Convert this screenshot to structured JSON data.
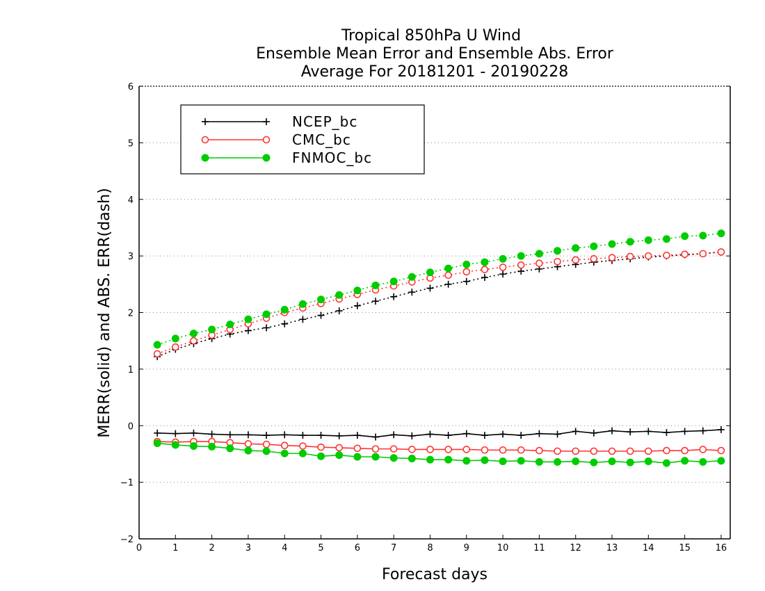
{
  "chart_data": {
    "type": "line",
    "title": [
      "Tropical 850hPa U Wind",
      "Ensemble Mean Error and Ensemble Abs. Error",
      "Average For 20181201 - 20190228"
    ],
    "xlabel": "Forecast days",
    "ylabel": "MERR(solid) and ABS. ERR(dash)",
    "xlim": [
      0,
      16.25
    ],
    "ylim": [
      -2,
      6
    ],
    "xticks": [
      "0",
      "1",
      "2",
      "3",
      "4",
      "5",
      "6",
      "7",
      "8",
      "9",
      "10",
      "11",
      "12",
      "13",
      "14",
      "15",
      "16"
    ],
    "yticks": [
      "−2",
      "−1",
      "0",
      "1",
      "2",
      "3",
      "4",
      "5",
      "6"
    ],
    "grid": "horizontal dotted",
    "legend_position": "top-left",
    "x": [
      0.5,
      1,
      1.5,
      2,
      2.5,
      3,
      3.5,
      4,
      4.5,
      5,
      5.5,
      6,
      6.5,
      7,
      7.5,
      8,
      8.5,
      9,
      9.5,
      10,
      10.5,
      11,
      11.5,
      12,
      12.5,
      13,
      13.5,
      14,
      14.5,
      15,
      15.5,
      16
    ],
    "series": [
      {
        "name": "NCEP_bc",
        "color": "#000000",
        "marker": "plus",
        "merr": [
          -0.13,
          -0.14,
          -0.13,
          -0.15,
          -0.16,
          -0.16,
          -0.17,
          -0.16,
          -0.17,
          -0.17,
          -0.18,
          -0.17,
          -0.2,
          -0.16,
          -0.18,
          -0.15,
          -0.17,
          -0.14,
          -0.17,
          -0.15,
          -0.17,
          -0.14,
          -0.15,
          -0.1,
          -0.13,
          -0.09,
          -0.11,
          -0.1,
          -0.12,
          -0.1,
          -0.09,
          -0.07
        ],
        "abs_err": [
          1.22,
          1.35,
          1.45,
          1.54,
          1.62,
          1.68,
          1.73,
          1.8,
          1.88,
          1.95,
          2.03,
          2.12,
          2.2,
          2.28,
          2.36,
          2.43,
          2.5,
          2.55,
          2.62,
          2.68,
          2.73,
          2.77,
          2.81,
          2.85,
          2.89,
          2.92,
          2.95,
          2.98,
          3.0,
          3.02,
          3.04,
          3.07
        ]
      },
      {
        "name": "CMC_bc",
        "color": "#ff3333",
        "marker": "open-circle",
        "merr": [
          -0.28,
          -0.29,
          -0.28,
          -0.28,
          -0.3,
          -0.32,
          -0.33,
          -0.35,
          -0.36,
          -0.38,
          -0.39,
          -0.4,
          -0.41,
          -0.41,
          -0.42,
          -0.42,
          -0.42,
          -0.42,
          -0.43,
          -0.43,
          -0.43,
          -0.44,
          -0.45,
          -0.45,
          -0.45,
          -0.45,
          -0.45,
          -0.45,
          -0.44,
          -0.44,
          -0.42,
          -0.44
        ],
        "abs_err": [
          1.27,
          1.39,
          1.5,
          1.6,
          1.7,
          1.8,
          1.9,
          2.0,
          2.08,
          2.16,
          2.24,
          2.32,
          2.4,
          2.47,
          2.54,
          2.61,
          2.66,
          2.72,
          2.76,
          2.8,
          2.84,
          2.87,
          2.9,
          2.93,
          2.95,
          2.97,
          2.99,
          3.0,
          3.01,
          3.03,
          3.04,
          3.07
        ]
      },
      {
        "name": "FNMOC_bc",
        "color": "#00cc00",
        "marker": "filled-circle",
        "merr": [
          -0.31,
          -0.34,
          -0.36,
          -0.37,
          -0.4,
          -0.44,
          -0.45,
          -0.49,
          -0.49,
          -0.54,
          -0.52,
          -0.55,
          -0.55,
          -0.57,
          -0.58,
          -0.6,
          -0.6,
          -0.62,
          -0.61,
          -0.63,
          -0.62,
          -0.64,
          -0.64,
          -0.63,
          -0.65,
          -0.63,
          -0.65,
          -0.63,
          -0.66,
          -0.62,
          -0.64,
          -0.62
        ],
        "abs_err": [
          1.43,
          1.54,
          1.63,
          1.7,
          1.79,
          1.88,
          1.97,
          2.05,
          2.15,
          2.23,
          2.31,
          2.39,
          2.48,
          2.55,
          2.63,
          2.71,
          2.78,
          2.85,
          2.89,
          2.95,
          3.0,
          3.04,
          3.09,
          3.14,
          3.17,
          3.21,
          3.25,
          3.28,
          3.3,
          3.35,
          3.36,
          3.4
        ]
      }
    ]
  }
}
